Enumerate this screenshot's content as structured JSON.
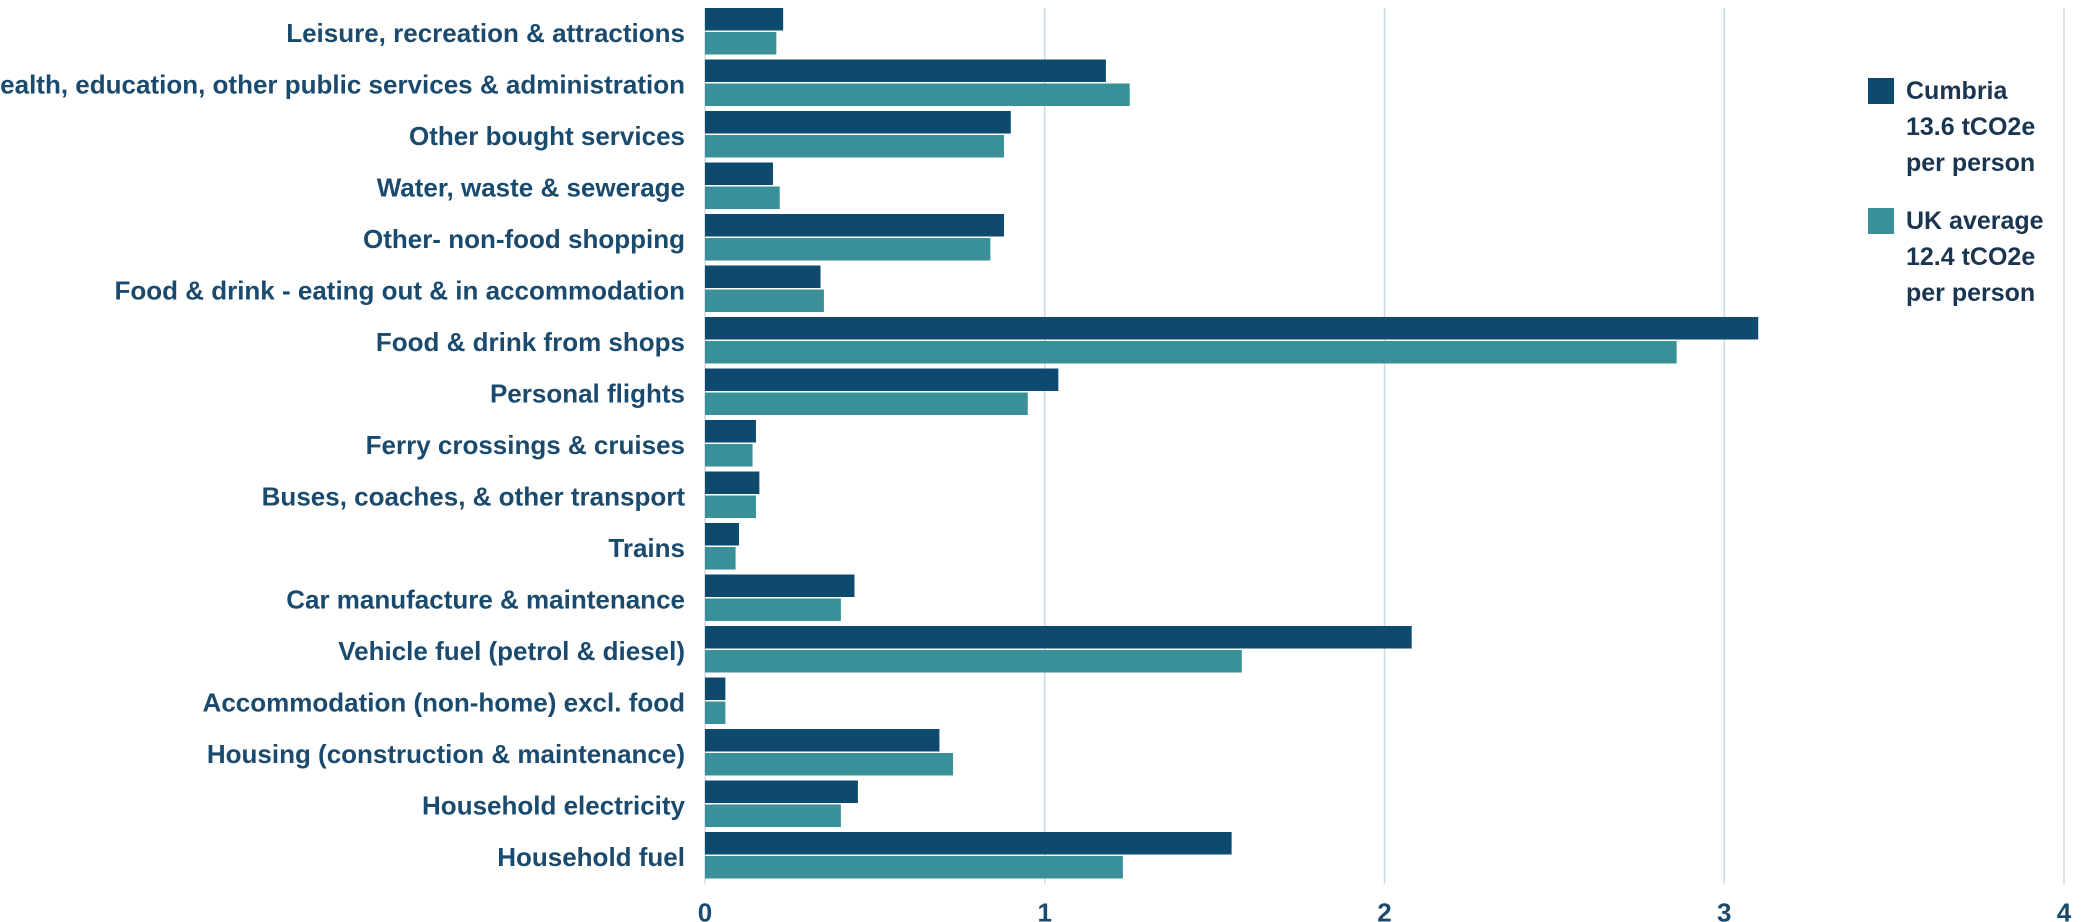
{
  "chart_data": {
    "type": "bar",
    "orientation": "horizontal",
    "categories": [
      "Leisure, recreation & attractions",
      "Health, education, other public services & administration",
      "Other bought services",
      "Water, waste & sewerage",
      "Other- non-food shopping",
      "Food & drink - eating out & in accommodation",
      "Food & drink from shops",
      "Personal flights",
      "Ferry crossings & cruises",
      "Buses, coaches, & other transport",
      "Trains",
      "Car manufacture & maintenance",
      "Vehicle fuel (petrol & diesel)",
      "Accommodation (non-home) excl. food",
      "Housing (construction & maintenance)",
      "Household electricity",
      "Household fuel"
    ],
    "series": [
      {
        "name": "Cumbria 13.6 tCO2e per person",
        "legend_lines": [
          "Cumbria",
          "13.6 tCO2e",
          "per person"
        ],
        "color": "#0d4a6e",
        "values": [
          0.23,
          1.18,
          0.9,
          0.2,
          0.88,
          0.34,
          3.1,
          1.04,
          0.15,
          0.16,
          0.1,
          0.44,
          2.08,
          0.06,
          0.69,
          0.45,
          1.55
        ]
      },
      {
        "name": "UK average 12.4 tCO2e per person",
        "legend_lines": [
          "UK average",
          "12.4 tCO2e",
          "per person"
        ],
        "color": "#3a9098",
        "values": [
          0.21,
          1.25,
          0.88,
          0.22,
          0.84,
          0.35,
          2.86,
          0.95,
          0.14,
          0.15,
          0.09,
          0.4,
          1.58,
          0.06,
          0.73,
          0.4,
          1.23
        ]
      }
    ],
    "xlim": [
      0,
      4
    ],
    "xticks": [
      "0",
      "1",
      "2",
      "3",
      "4"
    ],
    "grid": "vertical",
    "legend_position": "right"
  }
}
